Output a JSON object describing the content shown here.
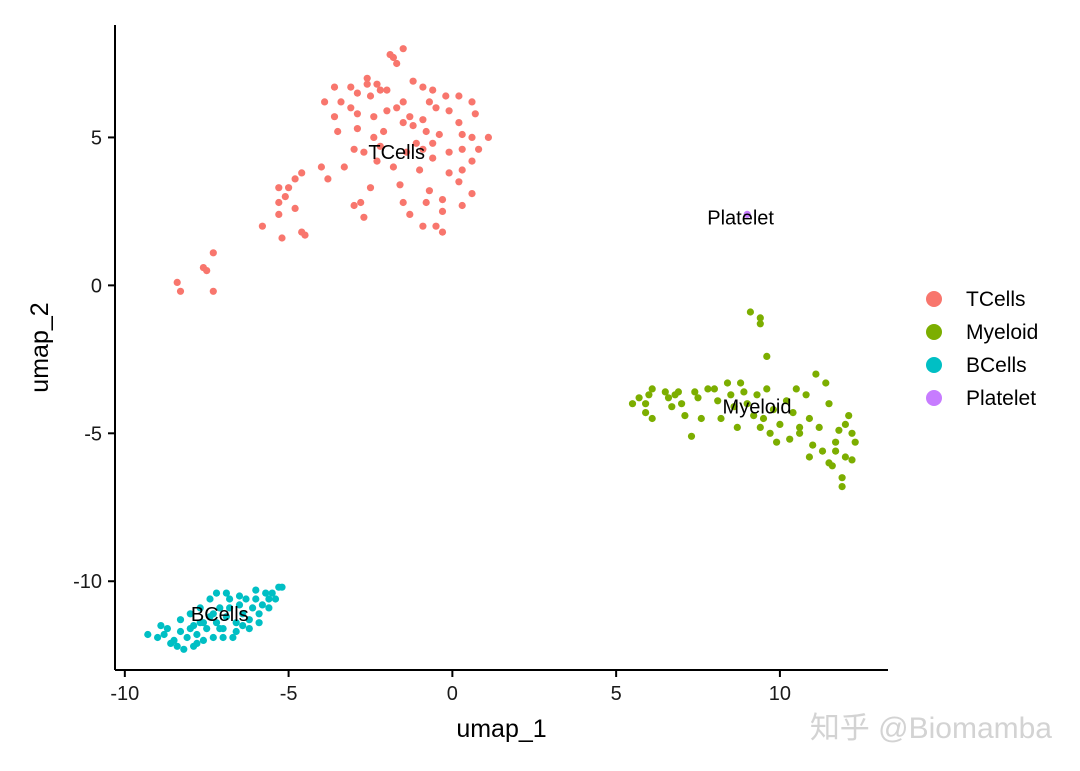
{
  "chart_data": {
    "type": "scatter",
    "xlabel": "umap_1",
    "ylabel": "umap_2",
    "xlim": [
      -10.3,
      13.3
    ],
    "ylim": [
      -13.0,
      8.8
    ],
    "x_ticks": [
      -10,
      -5,
      0,
      5,
      10
    ],
    "y_ticks": [
      -10,
      -5,
      0,
      5
    ],
    "legend": "right",
    "grid": false,
    "series": [
      {
        "name": "TCells",
        "color": "#F8766D",
        "points": [
          [
            -1.5,
            8.0
          ],
          [
            -1.8,
            7.7
          ],
          [
            -1.9,
            7.8
          ],
          [
            -1.7,
            7.5
          ],
          [
            -3.6,
            6.7
          ],
          [
            -3.1,
            6.7
          ],
          [
            -2.6,
            6.8
          ],
          [
            -2.6,
            7.0
          ],
          [
            -2.3,
            6.8
          ],
          [
            -2.0,
            6.6
          ],
          [
            -1.2,
            6.9
          ],
          [
            -0.9,
            6.7
          ],
          [
            -0.6,
            6.6
          ],
          [
            -3.9,
            6.2
          ],
          [
            -3.4,
            6.2
          ],
          [
            -2.9,
            6.5
          ],
          [
            -2.5,
            6.4
          ],
          [
            -2.2,
            6.6
          ],
          [
            -1.5,
            6.2
          ],
          [
            -0.7,
            6.2
          ],
          [
            -0.2,
            6.4
          ],
          [
            0.2,
            6.4
          ],
          [
            0.6,
            6.2
          ],
          [
            -3.6,
            5.7
          ],
          [
            -3.1,
            6.0
          ],
          [
            -2.9,
            5.8
          ],
          [
            -2.4,
            5.7
          ],
          [
            -2.0,
            5.9
          ],
          [
            -1.7,
            6.0
          ],
          [
            -1.3,
            5.7
          ],
          [
            -0.9,
            5.6
          ],
          [
            -0.5,
            6.0
          ],
          [
            -0.1,
            5.9
          ],
          [
            0.2,
            5.5
          ],
          [
            0.7,
            5.8
          ],
          [
            -3.5,
            5.2
          ],
          [
            -2.9,
            5.3
          ],
          [
            -2.4,
            5.0
          ],
          [
            -2.1,
            5.2
          ],
          [
            -1.5,
            5.5
          ],
          [
            -1.2,
            5.4
          ],
          [
            -0.8,
            5.2
          ],
          [
            -0.4,
            5.1
          ],
          [
            0.3,
            5.1
          ],
          [
            0.6,
            5.0
          ],
          [
            1.1,
            5.0
          ],
          [
            -3.0,
            4.6
          ],
          [
            -2.7,
            4.5
          ],
          [
            -2.2,
            4.7
          ],
          [
            -1.4,
            4.5
          ],
          [
            -1.1,
            4.8
          ],
          [
            -0.9,
            4.6
          ],
          [
            -0.6,
            4.8
          ],
          [
            -0.1,
            4.5
          ],
          [
            0.3,
            4.6
          ],
          [
            0.8,
            4.6
          ],
          [
            -3.3,
            4.0
          ],
          [
            -2.3,
            4.2
          ],
          [
            -1.8,
            4.0
          ],
          [
            -1.0,
            3.9
          ],
          [
            -0.6,
            4.3
          ],
          [
            -0.1,
            3.8
          ],
          [
            0.3,
            3.9
          ],
          [
            0.6,
            4.2
          ],
          [
            -4.0,
            4.0
          ],
          [
            -3.8,
            3.6
          ],
          [
            -4.6,
            3.8
          ],
          [
            -4.8,
            3.6
          ],
          [
            -2.5,
            3.3
          ],
          [
            -1.6,
            3.4
          ],
          [
            -0.7,
            3.2
          ],
          [
            0.2,
            3.5
          ],
          [
            0.6,
            3.1
          ],
          [
            -5.3,
            3.3
          ],
          [
            -5.0,
            3.3
          ],
          [
            -5.1,
            3.0
          ],
          [
            -2.8,
            2.8
          ],
          [
            -1.5,
            2.8
          ],
          [
            -0.8,
            2.8
          ],
          [
            -0.3,
            2.9
          ],
          [
            0.3,
            2.7
          ],
          [
            -5.3,
            2.8
          ],
          [
            -4.8,
            2.6
          ],
          [
            -3.0,
            2.7
          ],
          [
            -1.3,
            2.4
          ],
          [
            -0.3,
            2.5
          ],
          [
            -5.3,
            2.4
          ],
          [
            -2.7,
            2.3
          ],
          [
            -5.8,
            2.0
          ],
          [
            -4.6,
            1.8
          ],
          [
            -4.5,
            1.7
          ],
          [
            -0.9,
            2.0
          ],
          [
            -0.5,
            2.0
          ],
          [
            -0.3,
            1.8
          ],
          [
            -5.2,
            1.6
          ],
          [
            -7.3,
            1.1
          ],
          [
            -7.5,
            0.5
          ],
          [
            -7.6,
            0.6
          ],
          [
            -8.4,
            0.1
          ],
          [
            -8.3,
            -0.2
          ],
          [
            -7.3,
            -0.2
          ]
        ]
      },
      {
        "name": "Myeloid",
        "color": "#7CAE00",
        "points": [
          [
            9.1,
            -0.9
          ],
          [
            9.4,
            -1.1
          ],
          [
            9.4,
            -1.3
          ],
          [
            9.6,
            -2.4
          ],
          [
            5.5,
            -4.0
          ],
          [
            5.7,
            -3.8
          ],
          [
            5.9,
            -4.0
          ],
          [
            6.0,
            -3.7
          ],
          [
            6.1,
            -3.5
          ],
          [
            5.9,
            -4.3
          ],
          [
            6.1,
            -4.5
          ],
          [
            6.5,
            -3.6
          ],
          [
            6.6,
            -3.8
          ],
          [
            6.8,
            -3.7
          ],
          [
            6.9,
            -3.6
          ],
          [
            6.7,
            -4.1
          ],
          [
            7.0,
            -4.0
          ],
          [
            7.1,
            -4.4
          ],
          [
            7.4,
            -3.6
          ],
          [
            7.5,
            -3.8
          ],
          [
            7.6,
            -4.5
          ],
          [
            7.8,
            -3.5
          ],
          [
            7.3,
            -5.1
          ],
          [
            8.0,
            -3.5
          ],
          [
            8.1,
            -3.9
          ],
          [
            8.2,
            -4.5
          ],
          [
            8.4,
            -3.3
          ],
          [
            8.5,
            -3.7
          ],
          [
            8.6,
            -4.1
          ],
          [
            8.7,
            -4.8
          ],
          [
            8.8,
            -3.3
          ],
          [
            8.9,
            -3.6
          ],
          [
            9.0,
            -4.0
          ],
          [
            9.2,
            -4.4
          ],
          [
            9.3,
            -3.7
          ],
          [
            9.4,
            -4.8
          ],
          [
            9.5,
            -4.5
          ],
          [
            9.6,
            -3.5
          ],
          [
            9.7,
            -5.0
          ],
          [
            9.8,
            -4.2
          ],
          [
            9.9,
            -5.3
          ],
          [
            10.0,
            -4.7
          ],
          [
            10.2,
            -3.9
          ],
          [
            10.3,
            -5.2
          ],
          [
            10.4,
            -4.3
          ],
          [
            10.5,
            -3.5
          ],
          [
            10.6,
            -5.0
          ],
          [
            10.8,
            -3.7
          ],
          [
            10.9,
            -4.5
          ],
          [
            11.0,
            -5.4
          ],
          [
            11.1,
            -3.0
          ],
          [
            11.2,
            -4.8
          ],
          [
            11.3,
            -5.6
          ],
          [
            11.4,
            -3.3
          ],
          [
            11.5,
            -4.0
          ],
          [
            11.6,
            -6.1
          ],
          [
            11.7,
            -5.3
          ],
          [
            11.8,
            -4.9
          ],
          [
            11.9,
            -6.5
          ],
          [
            12.0,
            -5.8
          ],
          [
            12.1,
            -4.4
          ],
          [
            12.2,
            -5.0
          ],
          [
            12.3,
            -5.3
          ],
          [
            11.9,
            -6.8
          ],
          [
            11.7,
            -5.6
          ],
          [
            12.2,
            -5.9
          ],
          [
            12.0,
            -4.7
          ],
          [
            11.5,
            -6.0
          ],
          [
            10.9,
            -5.8
          ],
          [
            10.6,
            -4.8
          ]
        ]
      },
      {
        "name": "BCells",
        "color": "#00BFC4",
        "points": [
          [
            -9.3,
            -11.8
          ],
          [
            -9.0,
            -11.9
          ],
          [
            -8.8,
            -11.8
          ],
          [
            -8.7,
            -11.6
          ],
          [
            -8.5,
            -12.0
          ],
          [
            -8.4,
            -12.2
          ],
          [
            -8.3,
            -11.7
          ],
          [
            -8.2,
            -12.3
          ],
          [
            -8.1,
            -11.9
          ],
          [
            -8.0,
            -11.6
          ],
          [
            -7.9,
            -12.2
          ],
          [
            -7.8,
            -11.8
          ],
          [
            -7.7,
            -11.4
          ],
          [
            -7.6,
            -12.0
          ],
          [
            -7.5,
            -11.6
          ],
          [
            -7.4,
            -11.2
          ],
          [
            -7.3,
            -11.9
          ],
          [
            -7.2,
            -11.4
          ],
          [
            -7.1,
            -10.9
          ],
          [
            -7.0,
            -11.6
          ],
          [
            -6.9,
            -11.2
          ],
          [
            -6.8,
            -10.6
          ],
          [
            -6.7,
            -11.9
          ],
          [
            -6.6,
            -11.4
          ],
          [
            -6.5,
            -10.8
          ],
          [
            -6.4,
            -11.1
          ],
          [
            -6.3,
            -10.6
          ],
          [
            -6.2,
            -11.3
          ],
          [
            -6.1,
            -10.9
          ],
          [
            -6.0,
            -10.6
          ],
          [
            -5.9,
            -11.1
          ],
          [
            -5.8,
            -10.8
          ],
          [
            -5.7,
            -10.4
          ],
          [
            -5.6,
            -10.9
          ],
          [
            -5.5,
            -10.4
          ],
          [
            -5.4,
            -10.6
          ],
          [
            -5.3,
            -10.2
          ],
          [
            -5.2,
            -10.2
          ],
          [
            -6.9,
            -10.4
          ],
          [
            -7.2,
            -10.4
          ],
          [
            -7.4,
            -10.6
          ],
          [
            -7.7,
            -10.9
          ],
          [
            -8.0,
            -11.1
          ],
          [
            -8.3,
            -11.3
          ],
          [
            -6.6,
            -11.7
          ],
          [
            -6.2,
            -11.6
          ],
          [
            -5.9,
            -11.4
          ],
          [
            -7.0,
            -11.9
          ],
          [
            -7.8,
            -12.1
          ],
          [
            -8.6,
            -12.1
          ],
          [
            -6.5,
            -10.5
          ],
          [
            -6.8,
            -10.9
          ],
          [
            -7.3,
            -11.1
          ],
          [
            -7.6,
            -11.4
          ],
          [
            -6.0,
            -10.3
          ],
          [
            -5.6,
            -10.6
          ],
          [
            -8.9,
            -11.5
          ],
          [
            -7.1,
            -11.6
          ],
          [
            -6.4,
            -11.5
          ],
          [
            -7.9,
            -11.5
          ]
        ]
      },
      {
        "name": "Platelet",
        "color": "#C77CFF",
        "points": [
          [
            9.0,
            2.4
          ]
        ]
      }
    ],
    "cluster_labels": [
      {
        "text": "TCells",
        "x": -1.7,
        "y": 4.5
      },
      {
        "text": "Platelet",
        "x": 8.8,
        "y": 2.3
      },
      {
        "text": "Myeloid",
        "x": 9.3,
        "y": -4.1
      },
      {
        "text": "BCells",
        "x": -7.1,
        "y": -11.1
      }
    ]
  },
  "legend": {
    "items": [
      {
        "label": "TCells",
        "color": "#F8766D"
      },
      {
        "label": "Myeloid",
        "color": "#7CAE00"
      },
      {
        "label": "BCells",
        "color": "#00BFC4"
      },
      {
        "label": "Platelet",
        "color": "#C77CFF"
      }
    ]
  },
  "watermark": {
    "text": "知乎 @Biomamba"
  }
}
